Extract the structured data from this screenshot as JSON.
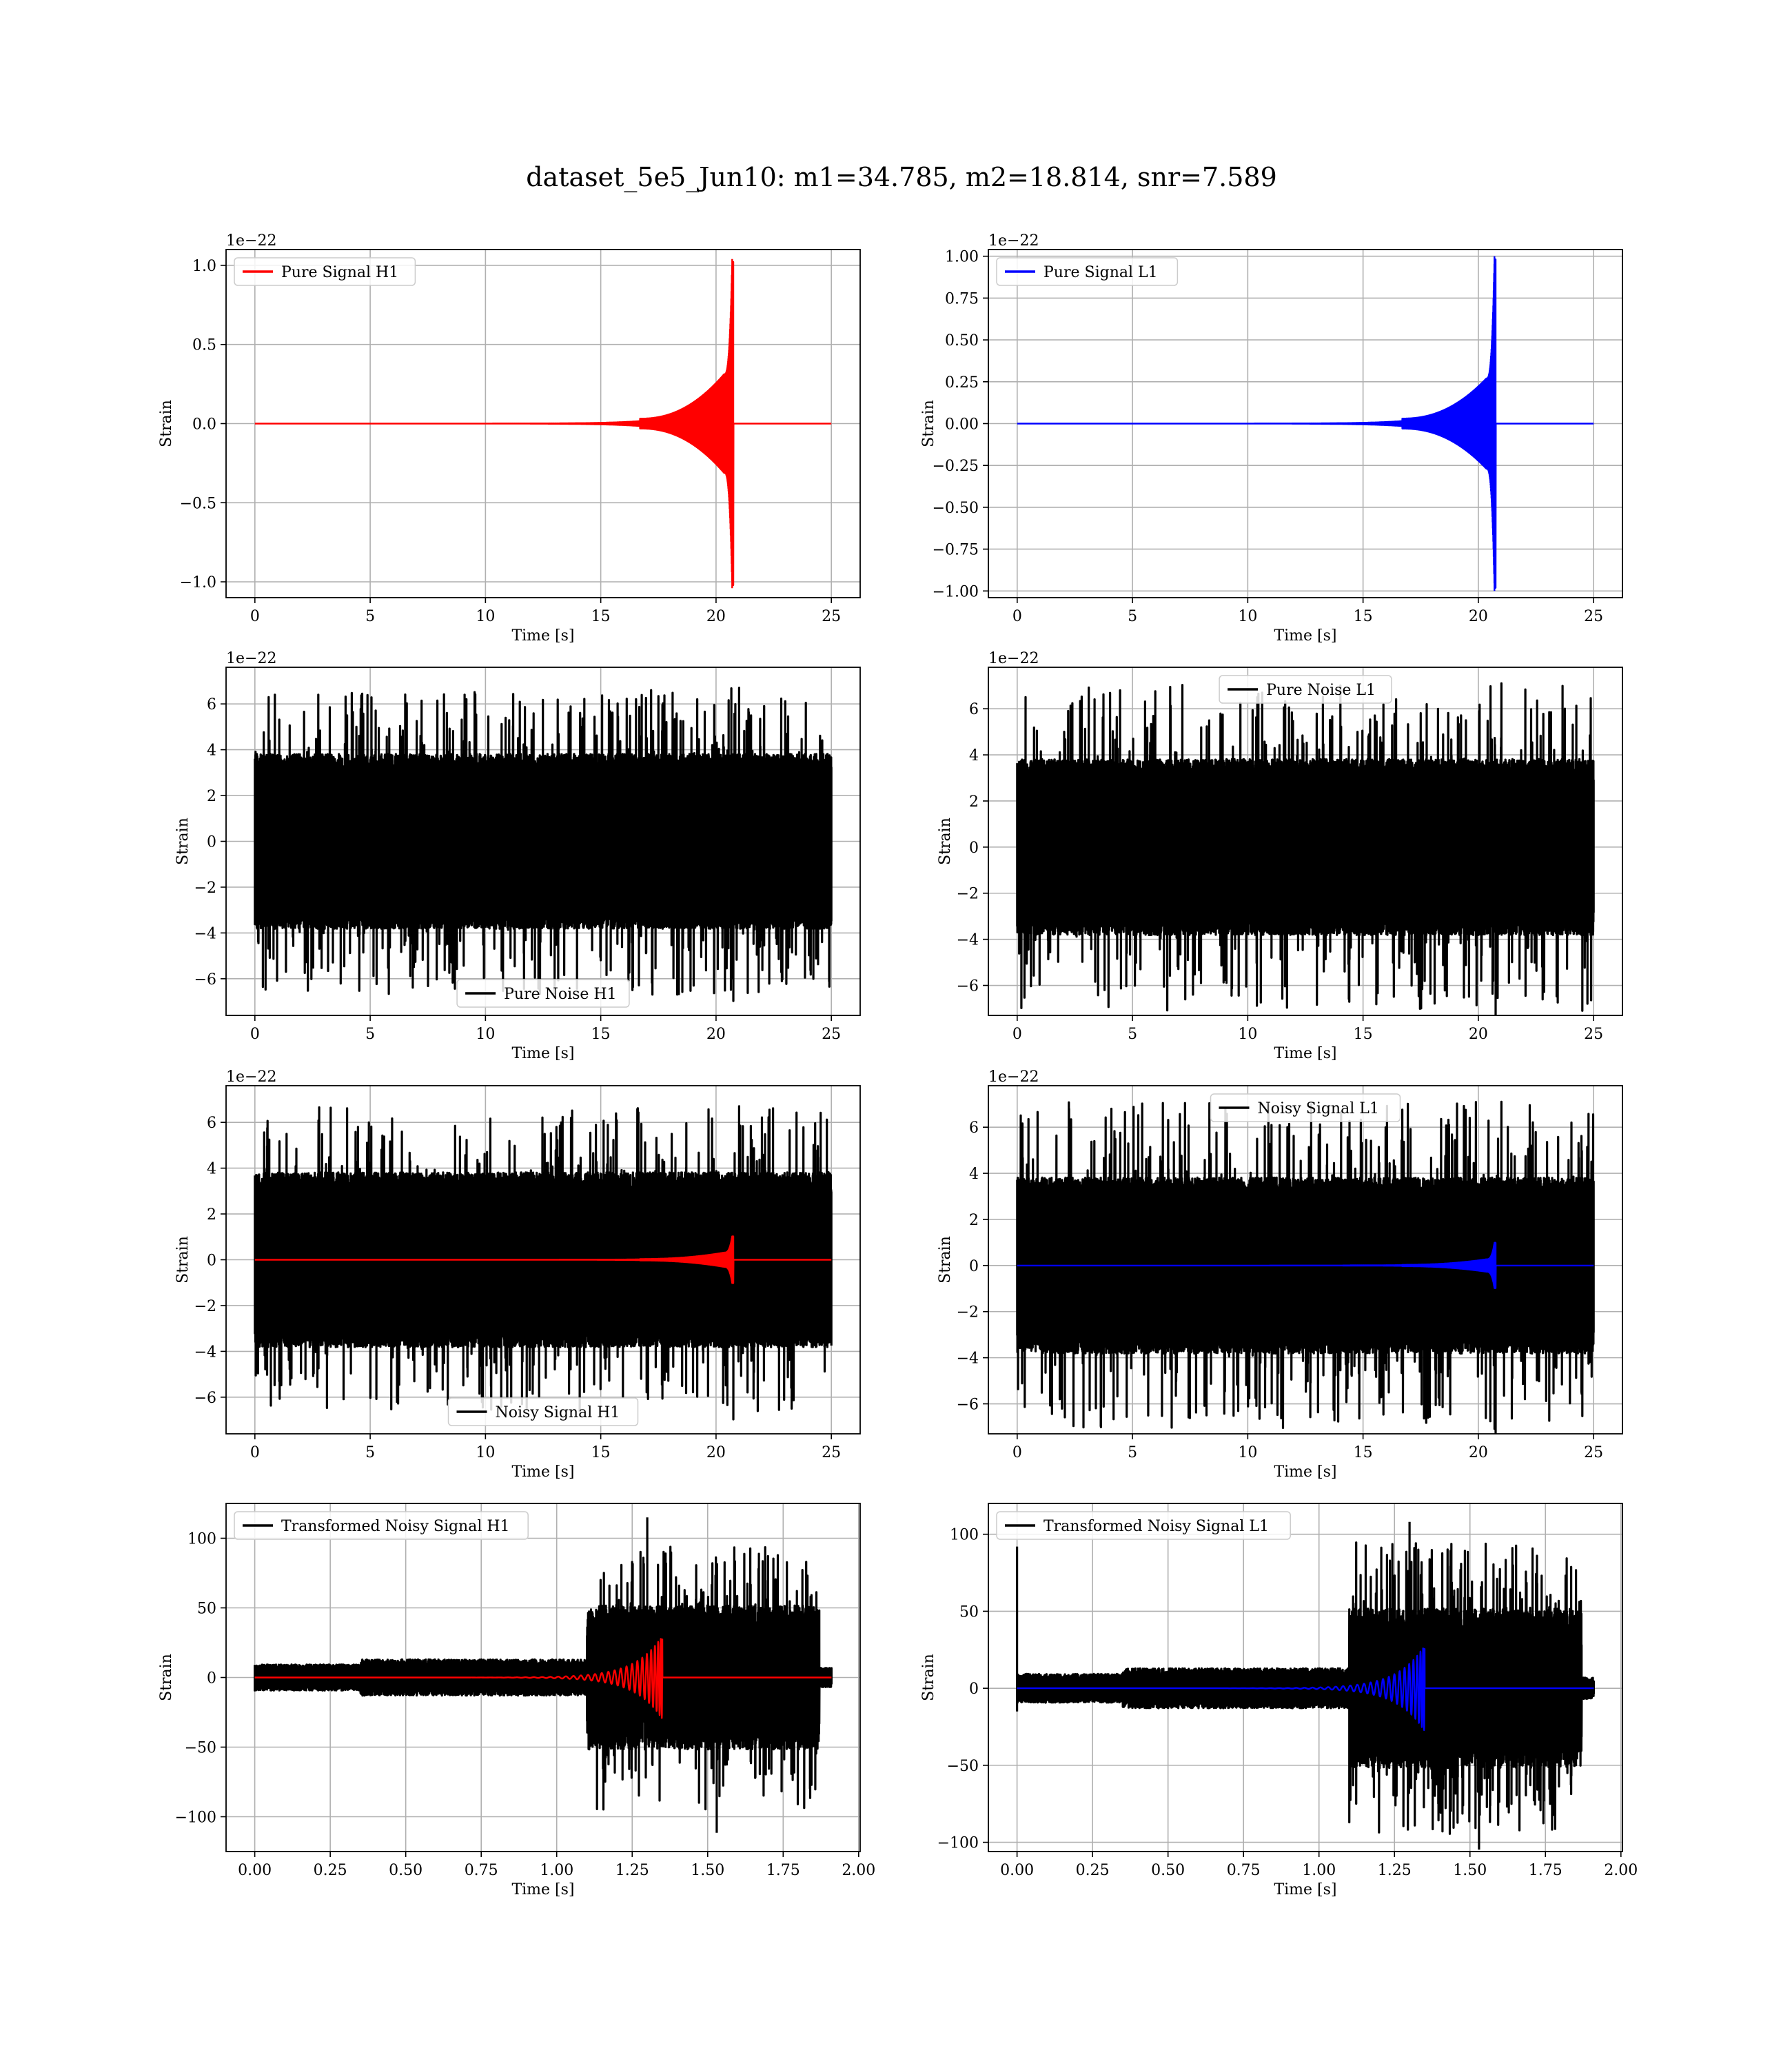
{
  "figure": {
    "title": "dataset_5e5_Jun10: m1=34.785, m2=18.814, snr=7.589"
  },
  "chart_data": [
    {
      "id": "pure-signal-h1",
      "type": "line",
      "xlabel": "Time [s]",
      "ylabel": "Strain",
      "offset_text": "1e−22",
      "xlim": [
        -1.25,
        26.25
      ],
      "ylim": [
        -1.1,
        1.1
      ],
      "xticks": [
        0,
        5,
        10,
        15,
        20,
        25
      ],
      "xtick_labels": [
        "0",
        "5",
        "10",
        "15",
        "20",
        "25"
      ],
      "yticks": [
        -1.0,
        -0.5,
        0.0,
        0.5,
        1.0
      ],
      "ytick_labels": [
        "−1.0",
        "−0.5",
        "0.0",
        "0.5",
        "1.0"
      ],
      "grid": true,
      "legend_position": "upper-left",
      "series": [
        {
          "name": "Pure Signal H1",
          "color": "#ff0000",
          "kind": "chirp",
          "t_start": 0,
          "t_end": 25,
          "merger": 20.7,
          "amp": 1.04,
          "env_start": 0.0,
          "env_mid": 0.3,
          "in_legend": true
        }
      ]
    },
    {
      "id": "pure-signal-l1",
      "type": "line",
      "xlabel": "Time [s]",
      "ylabel": "Strain",
      "offset_text": "1e−22",
      "xlim": [
        -1.25,
        26.25
      ],
      "ylim": [
        -1.04,
        1.04
      ],
      "xticks": [
        0,
        5,
        10,
        15,
        20,
        25
      ],
      "xtick_labels": [
        "0",
        "5",
        "10",
        "15",
        "20",
        "25"
      ],
      "yticks": [
        -1.0,
        -0.75,
        -0.5,
        -0.25,
        0.0,
        0.25,
        0.5,
        0.75,
        1.0
      ],
      "ytick_labels": [
        "−1.00",
        "−0.75",
        "−0.50",
        "−0.25",
        "0.00",
        "0.25",
        "0.50",
        "0.75",
        "1.00"
      ],
      "grid": true,
      "legend_position": "upper-left",
      "series": [
        {
          "name": "Pure Signal L1",
          "color": "#0000ff",
          "kind": "chirp",
          "t_start": 0,
          "t_end": 25,
          "merger": 20.7,
          "amp": 1.0,
          "env_start": 0.0,
          "env_mid": 0.27,
          "in_legend": true
        }
      ]
    },
    {
      "id": "pure-noise-h1",
      "type": "line",
      "xlabel": "Time [s]",
      "ylabel": "Strain",
      "offset_text": "1e−22",
      "xlim": [
        -1.25,
        26.25
      ],
      "ylim": [
        -7.6,
        7.6
      ],
      "xticks": [
        0,
        5,
        10,
        15,
        20,
        25
      ],
      "xtick_labels": [
        "0",
        "5",
        "10",
        "15",
        "20",
        "25"
      ],
      "yticks": [
        -6,
        -4,
        -2,
        0,
        2,
        4,
        6
      ],
      "ytick_labels": [
        "−6",
        "−4",
        "−2",
        "0",
        "2",
        "4",
        "6"
      ],
      "grid": true,
      "legend_position": "lower-center",
      "series": [
        {
          "name": "Pure Noise H1",
          "color": "#000000",
          "kind": "noise",
          "t_start": 0,
          "t_end": 25,
          "band": 3.6,
          "spike": 6.7,
          "in_legend": true
        }
      ]
    },
    {
      "id": "pure-noise-l1",
      "type": "line",
      "xlabel": "Time [s]",
      "ylabel": "Strain",
      "offset_text": "1e−22",
      "xlim": [
        -1.25,
        26.25
      ],
      "ylim": [
        -7.3,
        7.8
      ],
      "xticks": [
        0,
        5,
        10,
        15,
        20,
        25
      ],
      "xtick_labels": [
        "0",
        "5",
        "10",
        "15",
        "20",
        "25"
      ],
      "yticks": [
        -6,
        -4,
        -2,
        0,
        2,
        4,
        6
      ],
      "ytick_labels": [
        "−6",
        "−4",
        "−2",
        "0",
        "2",
        "4",
        "6"
      ],
      "grid": true,
      "legend_position": "upper-center",
      "series": [
        {
          "name": "Pure Noise L1",
          "color": "#000000",
          "kind": "noise",
          "t_start": 0,
          "t_end": 25,
          "band": 3.6,
          "spike": 7.1,
          "in_legend": true
        }
      ]
    },
    {
      "id": "noisy-signal-h1",
      "type": "line",
      "xlabel": "Time [s]",
      "ylabel": "Strain",
      "offset_text": "1e−22",
      "xlim": [
        -1.25,
        26.25
      ],
      "ylim": [
        -7.6,
        7.6
      ],
      "xticks": [
        0,
        5,
        10,
        15,
        20,
        25
      ],
      "xtick_labels": [
        "0",
        "5",
        "10",
        "15",
        "20",
        "25"
      ],
      "yticks": [
        -6,
        -4,
        -2,
        0,
        2,
        4,
        6
      ],
      "ytick_labels": [
        "−6",
        "−4",
        "−2",
        "0",
        "2",
        "4",
        "6"
      ],
      "grid": true,
      "legend_position": "lower-center",
      "series": [
        {
          "name": "Noisy Signal H1",
          "color": "#000000",
          "kind": "noise",
          "t_start": 0,
          "t_end": 25,
          "band": 3.6,
          "spike": 6.7,
          "in_legend": true
        },
        {
          "name": "",
          "color": "#ff0000",
          "kind": "chirp",
          "t_start": 0,
          "t_end": 25,
          "merger": 20.7,
          "amp": 1.04,
          "env_start": 0.0,
          "env_mid": 0.3,
          "in_legend": false
        }
      ]
    },
    {
      "id": "noisy-signal-l1",
      "type": "line",
      "xlabel": "Time [s]",
      "ylabel": "Strain",
      "offset_text": "1e−22",
      "xlim": [
        -1.25,
        26.25
      ],
      "ylim": [
        -7.3,
        7.8
      ],
      "xticks": [
        0,
        5,
        10,
        15,
        20,
        25
      ],
      "xtick_labels": [
        "0",
        "5",
        "10",
        "15",
        "20",
        "25"
      ],
      "yticks": [
        -6,
        -4,
        -2,
        0,
        2,
        4,
        6
      ],
      "ytick_labels": [
        "−6",
        "−4",
        "−2",
        "0",
        "2",
        "4",
        "6"
      ],
      "grid": true,
      "legend_position": "upper-center",
      "series": [
        {
          "name": "Noisy Signal L1",
          "color": "#000000",
          "kind": "noise",
          "t_start": 0,
          "t_end": 25,
          "band": 3.6,
          "spike": 7.1,
          "in_legend": true
        },
        {
          "name": "",
          "color": "#0000ff",
          "kind": "chirp",
          "t_start": 0,
          "t_end": 25,
          "merger": 20.7,
          "amp": 1.0,
          "env_start": 0.0,
          "env_mid": 0.27,
          "in_legend": false
        }
      ]
    },
    {
      "id": "transformed-noisy-signal-h1",
      "type": "line",
      "xlabel": "Time [s]",
      "ylabel": "Strain",
      "offset_text": "",
      "xlim": [
        -0.095,
        2.005
      ],
      "ylim": [
        -125,
        125
      ],
      "xticks": [
        0.0,
        0.25,
        0.5,
        0.75,
        1.0,
        1.25,
        1.5,
        1.75,
        2.0
      ],
      "xtick_labels": [
        "0.00",
        "0.25",
        "0.50",
        "0.75",
        "1.00",
        "1.25",
        "1.50",
        "1.75",
        "2.00"
      ],
      "yticks": [
        -100,
        -50,
        0,
        50,
        100
      ],
      "ytick_labels": [
        "−100",
        "−50",
        "0",
        "50",
        "100"
      ],
      "grid": true,
      "legend_position": "upper-left",
      "series": [
        {
          "name": "Transformed Noisy Signal H1",
          "color": "#000000",
          "kind": "tnoise",
          "t_start": 0,
          "t_end": 1.91,
          "band_low": 9,
          "band_high": 45,
          "rise": 1.1,
          "end_drop": 1.87,
          "spike": 115,
          "in_legend": true
        },
        {
          "name": "",
          "color": "#ff0000",
          "kind": "tchirp",
          "t_start": 0,
          "t_end": 1.91,
          "merger": 1.35,
          "amp": 30,
          "in_legend": false
        }
      ]
    },
    {
      "id": "transformed-noisy-signal-l1",
      "type": "line",
      "xlabel": "Time [s]",
      "ylabel": "Strain",
      "offset_text": "",
      "xlim": [
        -0.095,
        2.005
      ],
      "ylim": [
        -106,
        120
      ],
      "xticks": [
        0.0,
        0.25,
        0.5,
        0.75,
        1.0,
        1.25,
        1.5,
        1.75,
        2.0
      ],
      "xtick_labels": [
        "0.00",
        "0.25",
        "0.50",
        "0.75",
        "1.00",
        "1.25",
        "1.50",
        "1.75",
        "2.00"
      ],
      "yticks": [
        -100,
        -50,
        0,
        50,
        100
      ],
      "ytick_labels": [
        "−100",
        "−50",
        "0",
        "50",
        "100"
      ],
      "grid": true,
      "legend_position": "upper-left",
      "series": [
        {
          "name": "Transformed Noisy Signal L1",
          "color": "#000000",
          "kind": "tnoise",
          "t_start": 0,
          "t_end": 1.91,
          "band_low": 9,
          "band_high": 45,
          "rise": 1.1,
          "end_drop": 1.87,
          "spike": 108,
          "first_spike": 92,
          "in_legend": true
        },
        {
          "name": "",
          "color": "#0000ff",
          "kind": "tchirp",
          "t_start": 0,
          "t_end": 1.91,
          "merger": 1.35,
          "amp": 28,
          "in_legend": false
        }
      ]
    }
  ]
}
